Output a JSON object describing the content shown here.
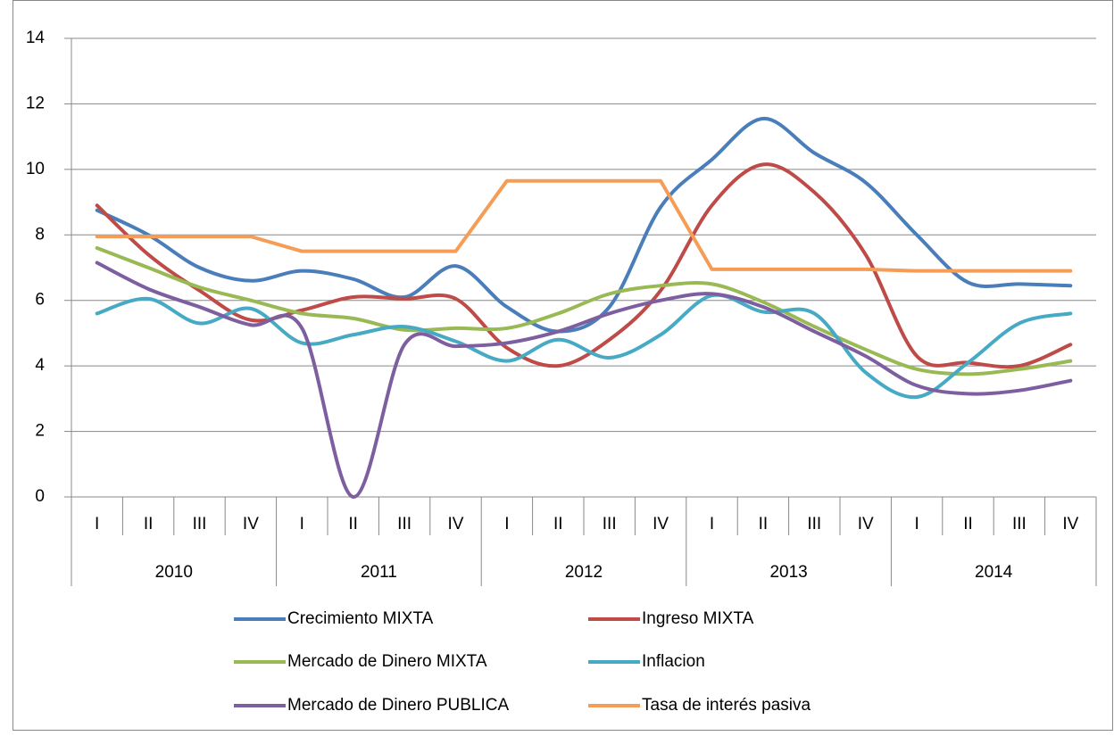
{
  "chart_data": {
    "type": "line",
    "categories": [
      "I",
      "II",
      "III",
      "IV",
      "I",
      "II",
      "III",
      "IV",
      "I",
      "II",
      "III",
      "IV",
      "I",
      "II",
      "III",
      "IV",
      "I",
      "II",
      "III",
      "IV"
    ],
    "x_groups": [
      "2010",
      "2011",
      "2012",
      "2013",
      "2014"
    ],
    "ylim": [
      0,
      14
    ],
    "yticks": [
      0,
      2,
      4,
      6,
      8,
      10,
      12,
      14
    ],
    "grid": true,
    "series": [
      {
        "name": "Crecimiento MIXTA",
        "color": "#4a7ebb",
        "smooth": true,
        "values": [
          8.75,
          8.0,
          7.0,
          6.6,
          6.9,
          6.65,
          6.1,
          7.05,
          5.8,
          5.05,
          5.8,
          8.85,
          10.3,
          11.55,
          10.5,
          9.6,
          8.0,
          6.55,
          6.5,
          6.45
        ]
      },
      {
        "name": "Ingreso MIXTA",
        "color": "#be4b48",
        "smooth": true,
        "values": [
          8.9,
          7.4,
          6.3,
          5.4,
          5.7,
          6.1,
          6.05,
          6.05,
          4.55,
          4.0,
          4.8,
          6.3,
          8.9,
          10.15,
          9.3,
          7.4,
          4.3,
          4.1,
          4.0,
          4.65
        ]
      },
      {
        "name": "Mercado de Dinero  MIXTA",
        "color": "#98b954",
        "smooth": true,
        "values": [
          7.6,
          7.0,
          6.4,
          6.0,
          5.6,
          5.45,
          5.1,
          5.15,
          5.15,
          5.6,
          6.2,
          6.45,
          6.5,
          5.95,
          5.2,
          4.5,
          3.9,
          3.75,
          3.9,
          4.15
        ]
      },
      {
        "name": "Inflacion",
        "color": "#46aac5",
        "smooth": true,
        "values": [
          5.6,
          6.05,
          5.3,
          5.75,
          4.7,
          4.95,
          5.2,
          4.75,
          4.15,
          4.8,
          4.25,
          4.95,
          6.15,
          5.65,
          5.6,
          3.8,
          3.05,
          4.1,
          5.3,
          5.6
        ]
      },
      {
        "name": "Mercado de Dinero  PUBLICA",
        "color": "#7d5fa0",
        "smooth": true,
        "values": [
          7.15,
          6.35,
          5.8,
          5.25,
          5.15,
          0.0,
          4.65,
          4.6,
          4.7,
          5.05,
          5.6,
          6.0,
          6.2,
          5.8,
          5.05,
          4.3,
          3.4,
          3.15,
          3.25,
          3.55
        ]
      },
      {
        "name": "Tasa de interés pasiva",
        "color": "#f59d56",
        "smooth": false,
        "values": [
          7.95,
          7.95,
          7.95,
          7.95,
          7.5,
          7.5,
          7.5,
          7.5,
          9.65,
          9.65,
          9.65,
          9.65,
          6.95,
          6.95,
          6.95,
          6.95,
          6.9,
          6.9,
          6.9,
          6.9
        ]
      }
    ]
  }
}
